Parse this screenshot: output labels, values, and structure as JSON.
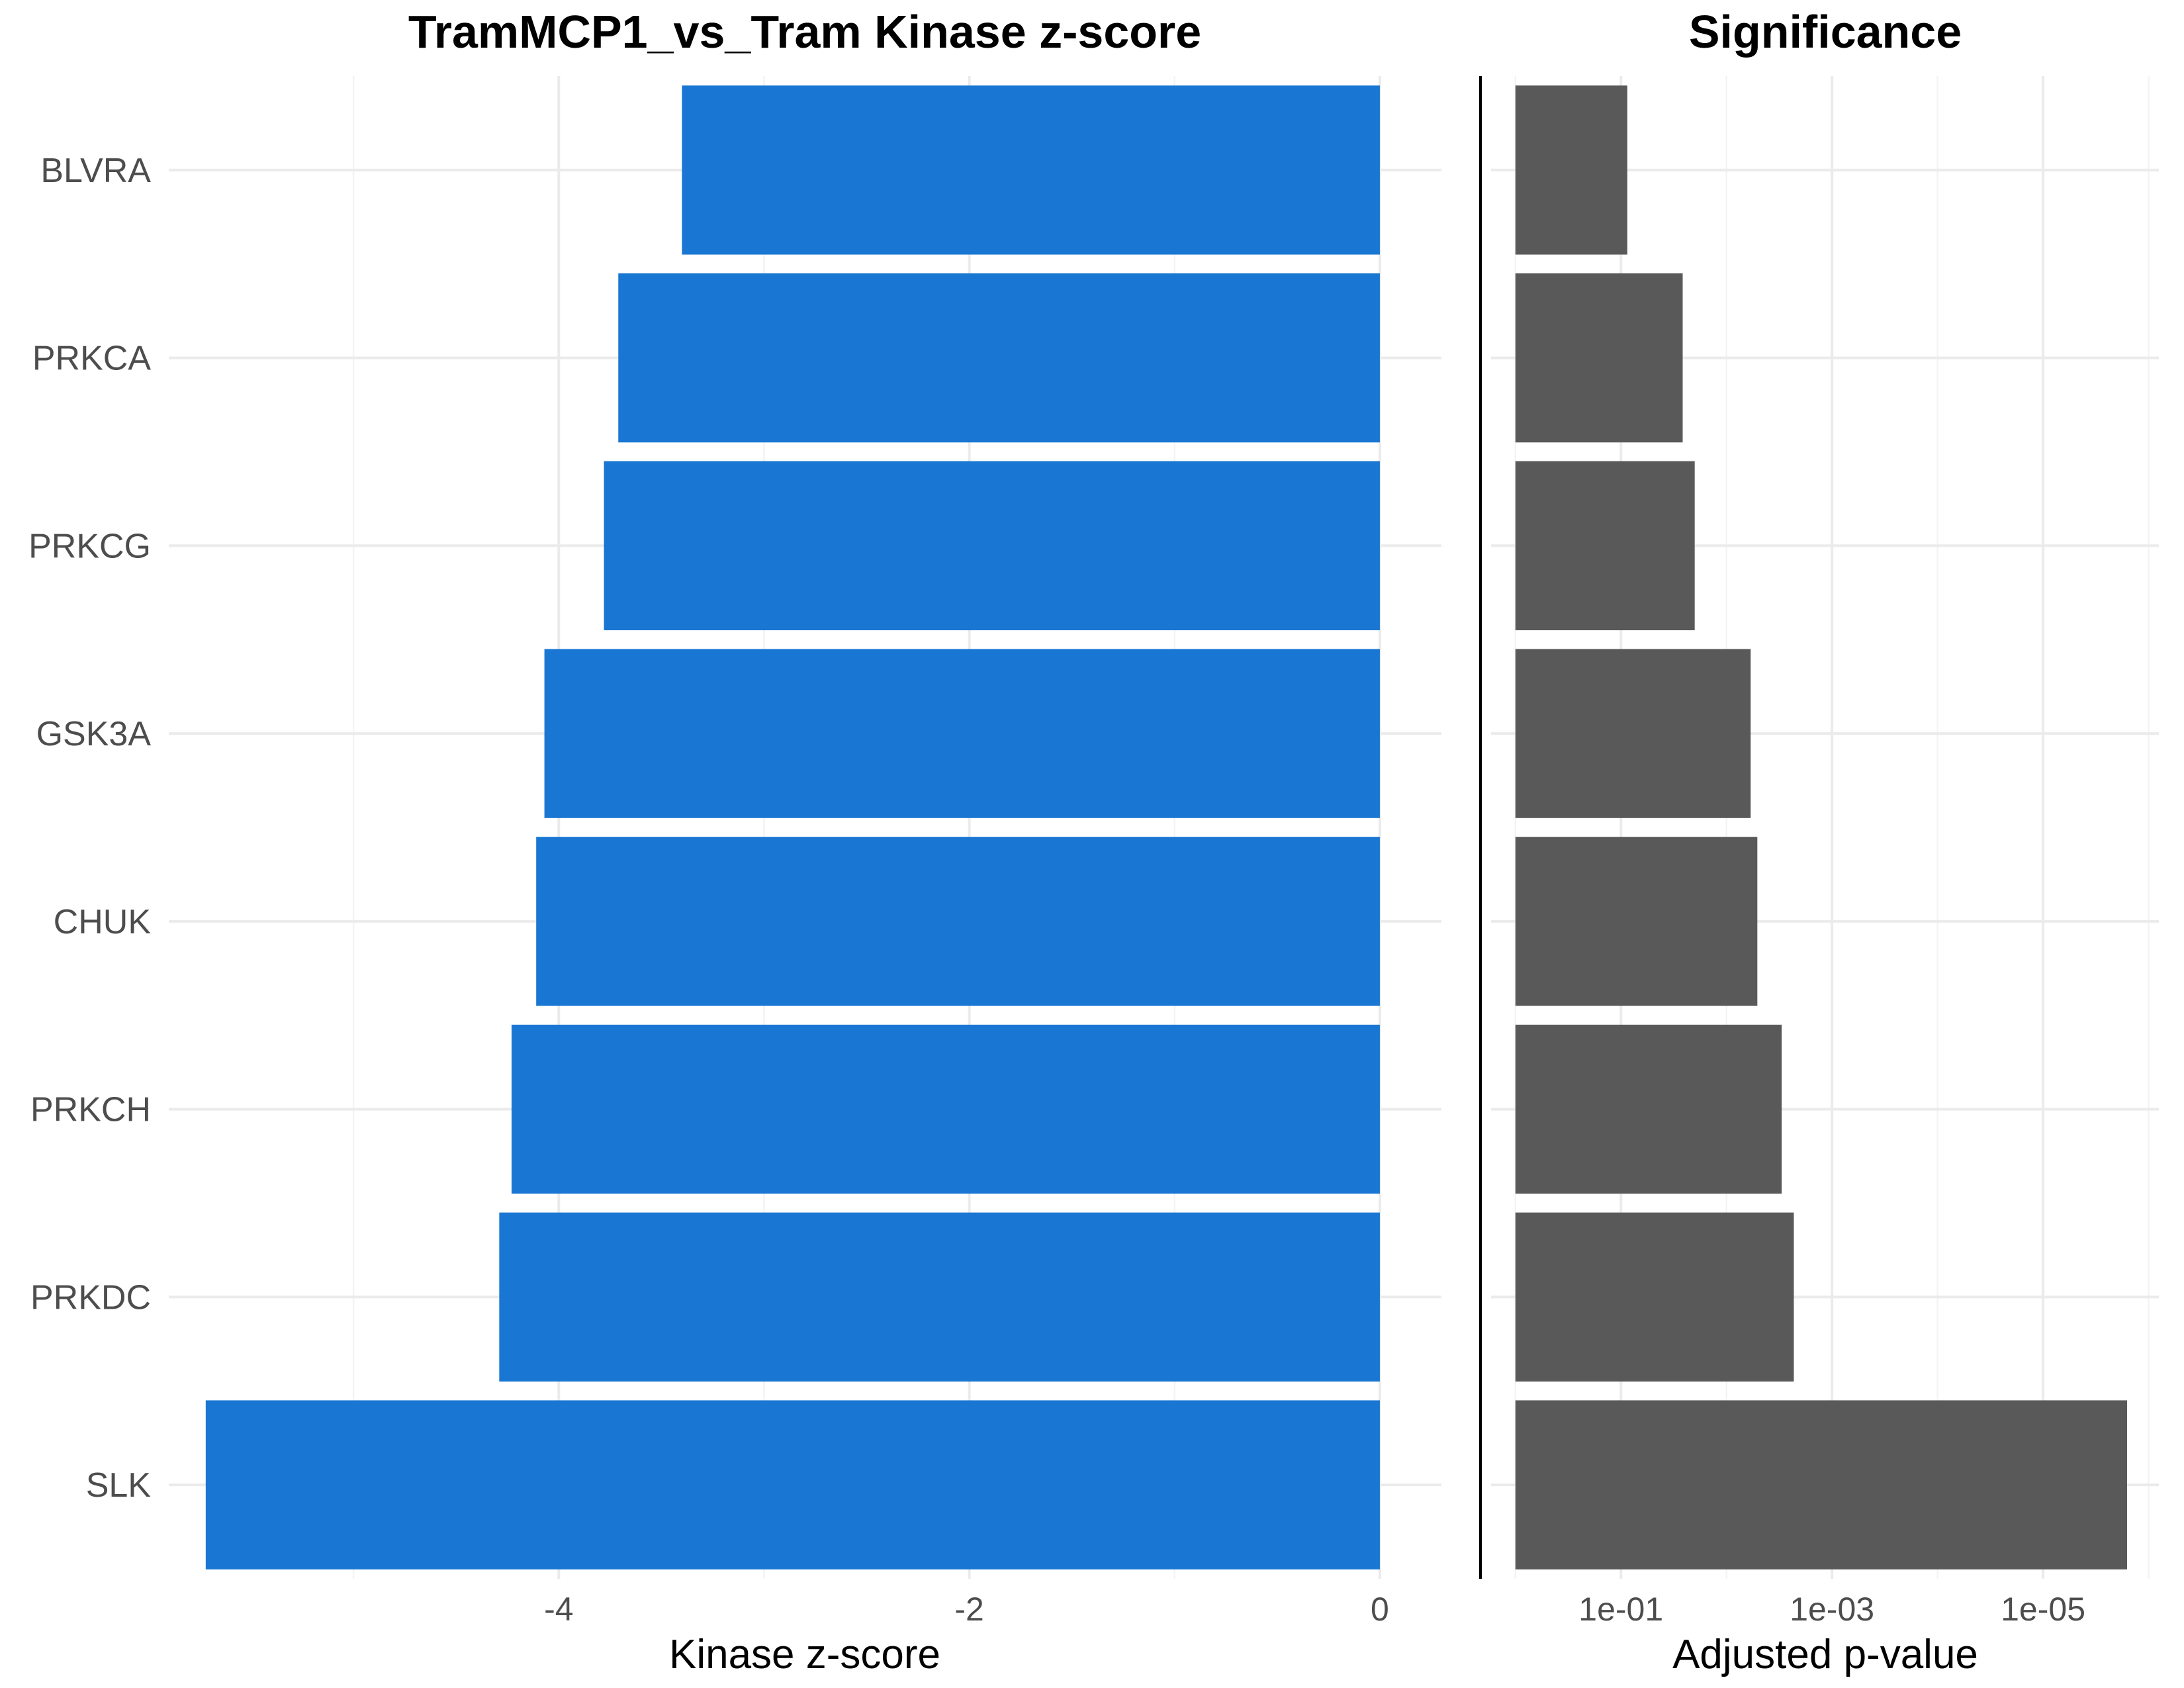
{
  "chart_data": [
    {
      "type": "bar",
      "orientation": "horizontal",
      "title": "TramMCP1_vs_Tram Kinase z-score",
      "xlabel": "Kinase z-score",
      "ylabel": "",
      "categories": [
        "BLVRA",
        "PRKCA",
        "PRKCG",
        "GSK3A",
        "CHUK",
        "PRKCH",
        "PRKDC",
        "SLK"
      ],
      "values": [
        -3.4,
        -3.71,
        -3.78,
        -4.07,
        -4.11,
        -4.23,
        -4.29,
        -5.72
      ],
      "xlim": [
        -5.9,
        0.3
      ],
      "xticks": [
        -4,
        -2,
        0
      ],
      "xtick_labels": [
        "-4",
        "-2",
        "0"
      ],
      "bar_color": "#1976D2",
      "grid": true
    },
    {
      "type": "bar",
      "orientation": "horizontal",
      "title": "Significance",
      "xlabel": "Adjusted p-value",
      "ylabel": "",
      "scale": "reversed-log10",
      "categories": [
        "BLVRA",
        "PRKCA",
        "PRKCG",
        "GSK3A",
        "CHUK",
        "PRKCH",
        "PRKDC",
        "SLK"
      ],
      "values": [
        0.087,
        0.026,
        0.02,
        0.0059,
        0.0051,
        0.003,
        0.0023,
        1.6e-06
      ],
      "baseline": 1,
      "xlim": [
        1.7,
        8e-07
      ],
      "xticks": [
        0.1,
        0.001,
        1e-05
      ],
      "xtick_labels": [
        "1e-01",
        "1e-03",
        "1e-05"
      ],
      "bar_color": "#595959",
      "grid": true
    }
  ]
}
